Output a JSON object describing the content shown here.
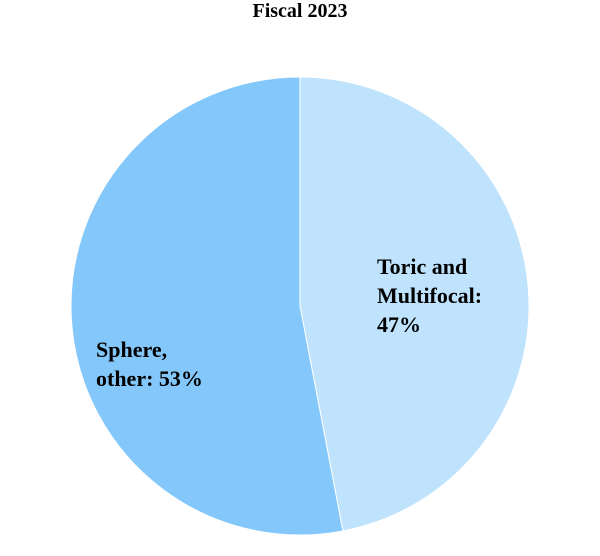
{
  "chart_data": {
    "type": "pie",
    "title": "Fiscal 2023",
    "values": [
      47,
      53
    ],
    "value_labels": [
      "Toric and Multifocal: 47%",
      "Sphere, other: 53%"
    ],
    "colors": [
      "#bfe3fd",
      "#84c8fb"
    ]
  }
}
